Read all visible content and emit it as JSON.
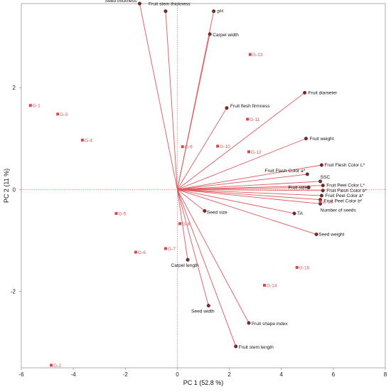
{
  "chart_data": {
    "type": "scatter",
    "title": "",
    "xlabel": "PC 1  (52.8 %)",
    "ylabel": "PC 2  (11 %)",
    "xlim": [
      -6,
      8
    ],
    "ylim": [
      -3.5,
      3.65
    ],
    "x_ticks": [
      -6,
      -4,
      -2,
      0,
      2,
      4,
      6,
      8
    ],
    "y_ticks": [
      -2,
      0,
      2
    ],
    "reference_lines": {
      "x": 0,
      "y": 0
    },
    "colors": {
      "loading_line": "#e0575c",
      "loading_point": "#7a2a2a",
      "observation": "#d9474e",
      "observation_label": "#c8585a",
      "frame": "#999999",
      "reference": "#e8777a"
    },
    "variables": [
      {
        "name": "Seed thickness",
        "x": -1.45,
        "y": 3.65
      },
      {
        "name": "Fruit stem thickness",
        "x": -0.45,
        "y": 3.5
      },
      {
        "name": "pH",
        "x": 1.4,
        "y": 3.5
      },
      {
        "name": "Carpel width",
        "x": 1.25,
        "y": 3.05
      },
      {
        "name": "Fruit diameter",
        "x": 4.9,
        "y": 1.9
      },
      {
        "name": "Fruit flesh firmness",
        "x": 1.9,
        "y": 1.6
      },
      {
        "name": "Fruit weight",
        "x": 4.95,
        "y": 1.0
      },
      {
        "name": "Fruit Flesh Color L*",
        "x": 5.55,
        "y": 0.48
      },
      {
        "name": "Fruit Flash Color a*",
        "x": 5.0,
        "y": 0.3
      },
      {
        "name": "SSC",
        "x": 5.5,
        "y": 0.16
      },
      {
        "name": "Fruit Peel Color L*",
        "x": 5.6,
        "y": 0.08
      },
      {
        "name": "Fruit Flesh Color b*",
        "x": 5.6,
        "y": -0.02
      },
      {
        "name": "Fruit size",
        "x": 5.05,
        "y": 0.04
      },
      {
        "name": "Fruit Peel Color a*",
        "x": 5.55,
        "y": -0.12
      },
      {
        "name": "Fruit Peel Color b*",
        "x": 5.5,
        "y": -0.2
      },
      {
        "name": "Number of seeds",
        "x": 5.5,
        "y": -0.28
      },
      {
        "name": "TA",
        "x": 4.5,
        "y": -0.47
      },
      {
        "name": "Seed size",
        "x": 1.05,
        "y": -0.42
      },
      {
        "name": "Seed weight",
        "x": 5.35,
        "y": -0.88
      },
      {
        "name": "Carpel length",
        "x": 0.4,
        "y": -1.38
      },
      {
        "name": "Seed width",
        "x": 1.2,
        "y": -2.28
      },
      {
        "name": "Fruit shape index",
        "x": 2.75,
        "y": -2.62
      },
      {
        "name": "Fruit stem length",
        "x": 2.25,
        "y": -3.08
      }
    ],
    "observations": [
      {
        "name": "G-1",
        "x": -5.65,
        "y": 1.65
      },
      {
        "name": "G-2",
        "x": -4.85,
        "y": -3.45
      },
      {
        "name": "G-3",
        "x": -4.6,
        "y": 1.48
      },
      {
        "name": "G-4",
        "x": -3.65,
        "y": 0.97
      },
      {
        "name": "G-5",
        "x": -2.35,
        "y": -0.47
      },
      {
        "name": "G-6",
        "x": -1.6,
        "y": -1.23
      },
      {
        "name": "G-7",
        "x": -0.45,
        "y": -1.16
      },
      {
        "name": "G-8",
        "x": 0.1,
        "y": -0.67
      },
      {
        "name": "G-9",
        "x": 0.2,
        "y": 0.84
      },
      {
        "name": "G-10",
        "x": 1.55,
        "y": 0.85
      },
      {
        "name": "G-11",
        "x": 2.7,
        "y": 1.38
      },
      {
        "name": "G-12",
        "x": 2.75,
        "y": 0.74
      },
      {
        "name": "G-13",
        "x": 2.8,
        "y": 2.65
      },
      {
        "name": "G-14",
        "x": 3.35,
        "y": -1.88
      },
      {
        "name": "G-15",
        "x": 4.6,
        "y": -1.53
      },
      {
        "name": "G-16",
        "x": 5.5,
        "y": -0.24
      }
    ]
  }
}
